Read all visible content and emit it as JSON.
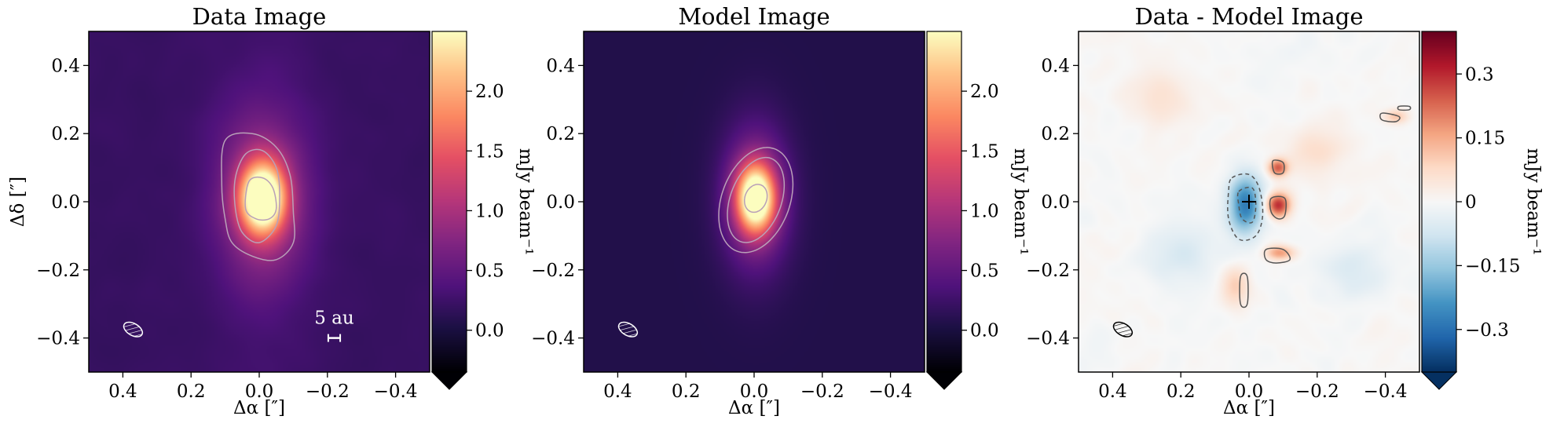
{
  "chart_data": [
    {
      "type": "heatmap",
      "title": "Data Image",
      "xlabel": "Δα [″]",
      "ylabel": "Δδ [″]",
      "xlim": [
        0.5,
        -0.5
      ],
      "ylim": [
        -0.5,
        0.5
      ],
      "xticks": [
        0.4,
        0.2,
        0.0,
        -0.2,
        -0.4
      ],
      "xtick_labels": [
        "0.4",
        "0.2",
        "0.0",
        "−0.2",
        "−0.4"
      ],
      "yticks": [
        0.4,
        0.2,
        0.0,
        -0.2,
        -0.4
      ],
      "ytick_labels": [
        "0.4",
        "0.2",
        "0.0",
        "−0.2",
        "−0.4"
      ],
      "colorbar": {
        "label": "mJy beam⁻¹",
        "colormap": "magma",
        "range": [
          -0.35,
          2.5
        ],
        "ticks": [
          0.0,
          0.5,
          1.0,
          1.5,
          2.0
        ],
        "tick_labels": [
          "0.0",
          "0.5",
          "1.0",
          "1.5",
          "2.0"
        ],
        "extend": "min"
      },
      "source": {
        "x": -0.01,
        "y": 0.01,
        "peak": 2.45,
        "sigma_x": 0.045,
        "sigma_y": 0.07,
        "halo_peak": 0.9,
        "halo_sigma_x": 0.09,
        "halo_sigma_y": 0.17
      },
      "background_level": 0.2,
      "contours": [
        {
          "level": "outer",
          "points": [
            [
              0.1,
              0.18
            ],
            [
              0.02,
              0.2
            ],
            [
              -0.05,
              0.16
            ],
            [
              -0.09,
              0.08
            ],
            [
              -0.1,
              -0.03
            ],
            [
              -0.1,
              -0.12
            ],
            [
              -0.05,
              -0.17
            ],
            [
              0.02,
              -0.16
            ],
            [
              0.08,
              -0.12
            ],
            [
              0.1,
              -0.05
            ],
            [
              0.11,
              0.05
            ]
          ]
        },
        {
          "level": "middle",
          "points": [
            [
              0.04,
              0.14
            ],
            [
              -0.01,
              0.15
            ],
            [
              -0.05,
              0.1
            ],
            [
              -0.06,
              0.02
            ],
            [
              -0.05,
              -0.07
            ],
            [
              0.0,
              -0.12
            ],
            [
              0.05,
              -0.09
            ],
            [
              0.07,
              -0.02
            ],
            [
              0.07,
              0.07
            ]
          ]
        },
        {
          "level": "inner",
          "points": [
            [
              0.03,
              0.06
            ],
            [
              -0.01,
              0.07
            ],
            [
              -0.04,
              0.04
            ],
            [
              -0.05,
              -0.02
            ],
            [
              -0.03,
              -0.05
            ],
            [
              0.01,
              -0.05
            ],
            [
              0.04,
              -0.02
            ]
          ]
        }
      ],
      "beam": {
        "x": 0.37,
        "y": -0.375,
        "major": 0.06,
        "minor": 0.035,
        "pa_deg": 30
      },
      "scale_bar": {
        "label": "5 au",
        "x": -0.22,
        "y": -0.4,
        "length": 0.035
      }
    },
    {
      "type": "heatmap",
      "title": "Model Image",
      "xlabel": "Δα [″]",
      "ylabel": "",
      "xlim": [
        0.5,
        -0.5
      ],
      "ylim": [
        -0.5,
        0.5
      ],
      "xticks": [
        0.4,
        0.2,
        0.0,
        -0.2,
        -0.4
      ],
      "xtick_labels": [
        "0.4",
        "0.2",
        "0.0",
        "−0.2",
        "−0.4"
      ],
      "yticks": [
        0.4,
        0.2,
        0.0,
        -0.2,
        -0.4
      ],
      "ytick_labels": [
        "0.4",
        "0.2",
        "0.0",
        "−0.2",
        "−0.4"
      ],
      "colorbar": {
        "label": "mJy beam⁻¹",
        "colormap": "magma",
        "range": [
          -0.35,
          2.5
        ],
        "ticks": [
          0.0,
          0.5,
          1.0,
          1.5,
          2.0
        ],
        "tick_labels": [
          "0.0",
          "0.5",
          "1.0",
          "1.5",
          "2.0"
        ],
        "extend": "min"
      },
      "source": {
        "x": -0.005,
        "y": 0.01,
        "peak": 2.45,
        "sigma_x": 0.04,
        "sigma_y": 0.07,
        "halo_peak": 0.85,
        "halo_sigma_x": 0.07,
        "halo_sigma_y": 0.15
      },
      "background_level": 0.06,
      "contours": [
        {
          "level": "outer",
          "ellipse": [
            -0.005,
            0.005,
            0.1,
            0.16,
            20
          ]
        },
        {
          "level": "middle",
          "ellipse": [
            -0.005,
            0.005,
            0.075,
            0.13,
            20
          ]
        },
        {
          "level": "inner",
          "ellipse": [
            -0.005,
            0.01,
            0.032,
            0.042,
            20
          ]
        }
      ],
      "beam": {
        "x": 0.37,
        "y": -0.375,
        "major": 0.06,
        "minor": 0.035,
        "pa_deg": 30
      }
    },
    {
      "type": "heatmap",
      "title": "Data - Model Image",
      "xlabel": "Δα [″]",
      "ylabel": "",
      "xlim": [
        0.5,
        -0.5
      ],
      "ylim": [
        -0.5,
        0.5
      ],
      "xticks": [
        0.4,
        0.2,
        0.0,
        -0.2,
        -0.4
      ],
      "xtick_labels": [
        "0.4",
        "0.2",
        "0.0",
        "−0.2",
        "−0.4"
      ],
      "yticks": [
        0.4,
        0.2,
        0.0,
        -0.2,
        -0.4
      ],
      "ytick_labels": [
        "0.4",
        "0.2",
        "0.0",
        "−0.2",
        "−0.4"
      ],
      "colorbar": {
        "label": "mJy beam⁻¹",
        "colormap": "RdBu_r",
        "range": [
          -0.4,
          0.4
        ],
        "ticks": [
          0.3,
          0.15,
          0.0,
          -0.15,
          -0.3
        ],
        "tick_labels": [
          "0.3",
          "0.15",
          "0",
          "−0.15",
          "−0.3"
        ],
        "extend": "min"
      },
      "residual_features": [
        {
          "x": 0.01,
          "y": -0.01,
          "amp": -0.28,
          "sx": 0.035,
          "sy": 0.06
        },
        {
          "x": -0.085,
          "y": -0.01,
          "amp": 0.3,
          "sx": 0.025,
          "sy": 0.025
        },
        {
          "x": -0.085,
          "y": 0.1,
          "amp": 0.24,
          "sx": 0.02,
          "sy": 0.018
        },
        {
          "x": -0.09,
          "y": -0.15,
          "amp": 0.17,
          "sx": 0.03,
          "sy": 0.015
        },
        {
          "x": 0.04,
          "y": -0.25,
          "amp": 0.1,
          "sx": 0.03,
          "sy": 0.04
        },
        {
          "x": -0.2,
          "y": 0.15,
          "amp": 0.07,
          "sx": 0.06,
          "sy": 0.05
        },
        {
          "x": 0.25,
          "y": 0.3,
          "amp": 0.06,
          "sx": 0.07,
          "sy": 0.05
        },
        {
          "x": -0.43,
          "y": 0.25,
          "amp": 0.12,
          "sx": 0.025,
          "sy": 0.015
        },
        {
          "x": 0.2,
          "y": -0.15,
          "amp": -0.06,
          "sx": 0.08,
          "sy": 0.06
        },
        {
          "x": -0.3,
          "y": -0.2,
          "amp": -0.05,
          "sx": 0.07,
          "sy": 0.05
        }
      ],
      "contours": [
        {
          "level": "negative",
          "dashed": true,
          "points": [
            [
              0.05,
              0.07
            ],
            [
              0.0,
              0.08
            ],
            [
              -0.03,
              0.04
            ],
            [
              -0.04,
              -0.04
            ],
            [
              -0.02,
              -0.1
            ],
            [
              0.03,
              -0.11
            ],
            [
              0.06,
              -0.05
            ],
            [
              0.06,
              0.03
            ]
          ]
        },
        {
          "level": "negative",
          "dashed": true,
          "points": [
            [
              0.03,
              0.03
            ],
            [
              -0.01,
              0.04
            ],
            [
              -0.02,
              -0.01
            ],
            [
              -0.01,
              -0.06
            ],
            [
              0.02,
              -0.05
            ],
            [
              0.03,
              -0.01
            ]
          ]
        },
        {
          "level": "positive",
          "points": [
            [
              -0.065,
              0.01
            ],
            [
              -0.105,
              0.01
            ],
            [
              -0.105,
              -0.04
            ],
            [
              -0.085,
              -0.05
            ],
            [
              -0.065,
              -0.03
            ]
          ]
        },
        {
          "level": "positive",
          "points": [
            [
              -0.07,
              0.12
            ],
            [
              -0.1,
              0.115
            ],
            [
              -0.1,
              0.085
            ],
            [
              -0.075,
              0.085
            ]
          ]
        },
        {
          "level": "positive",
          "points": [
            [
              -0.05,
              -0.14
            ],
            [
              -0.1,
              -0.14
            ],
            [
              -0.12,
              -0.17
            ],
            [
              -0.08,
              -0.18
            ],
            [
              -0.05,
              -0.17
            ]
          ]
        },
        {
          "level": "positive",
          "points": [
            [
              0.025,
              -0.22
            ],
            [
              0.005,
              -0.22
            ],
            [
              0.005,
              -0.3
            ],
            [
              0.025,
              -0.3
            ]
          ]
        },
        {
          "level": "positive",
          "points": [
            [
              -0.39,
              0.26
            ],
            [
              -0.44,
              0.25
            ],
            [
              -0.43,
              0.235
            ],
            [
              -0.39,
              0.24
            ]
          ]
        },
        {
          "level": "positive",
          "points": [
            [
              -0.44,
              0.28
            ],
            [
              -0.47,
              0.28
            ],
            [
              -0.47,
              0.27
            ],
            [
              -0.44,
              0.27
            ]
          ]
        }
      ],
      "marker": {
        "symbol": "+",
        "x": 0.0,
        "y": 0.0
      },
      "beam": {
        "x": 0.37,
        "y": -0.375,
        "major": 0.06,
        "minor": 0.035,
        "pa_deg": 30
      }
    }
  ]
}
